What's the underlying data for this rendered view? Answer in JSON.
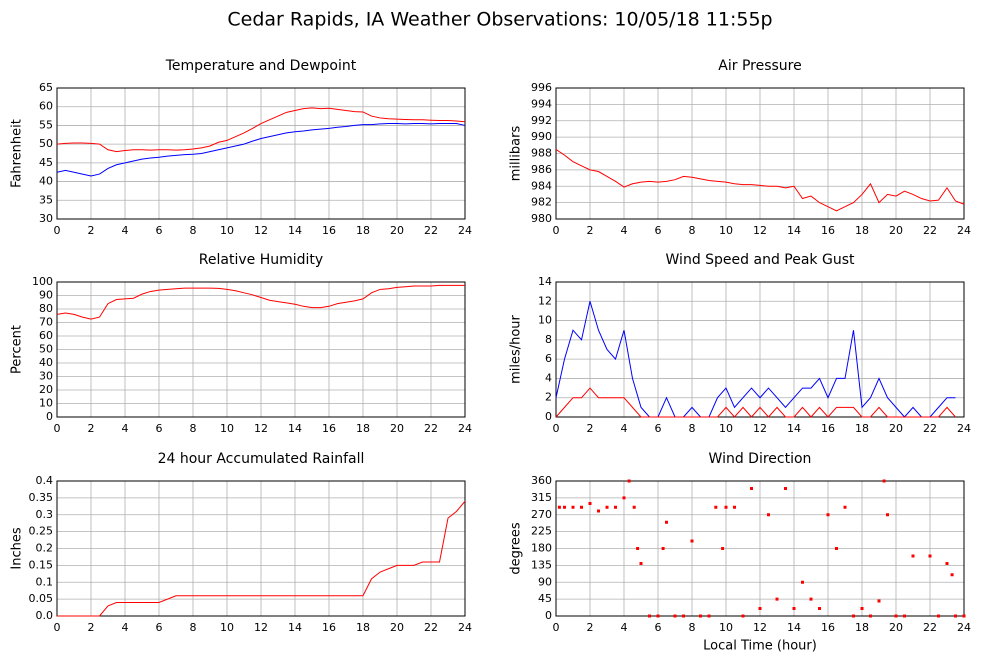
{
  "title": "Cedar Rapids, IA Weather Observations: 10/05/18 11:55p",
  "chart_data": [
    {
      "type": "line",
      "title": "Temperature and Dewpoint",
      "ylabel": "Fahrenheit",
      "x": [
        0,
        0.5,
        1,
        1.5,
        2,
        2.5,
        3,
        3.5,
        4,
        4.5,
        5,
        5.5,
        6,
        6.5,
        7,
        7.5,
        8,
        8.5,
        9,
        9.5,
        10,
        10.5,
        11,
        11.5,
        12,
        12.5,
        13,
        13.5,
        14,
        14.5,
        15,
        15.5,
        16,
        16.5,
        17,
        17.5,
        18,
        18.5,
        19,
        19.5,
        20,
        20.5,
        21,
        21.5,
        22,
        22.5,
        23,
        23.5,
        24
      ],
      "series": [
        {
          "color": "#ff0000",
          "values": [
            50,
            50.2,
            50.3,
            50.3,
            50.2,
            50,
            48.5,
            48,
            48.3,
            48.5,
            48.5,
            48.4,
            48.5,
            48.5,
            48.4,
            48.5,
            48.7,
            49,
            49.5,
            50.5,
            51,
            52,
            53,
            54.2,
            55.5,
            56.5,
            57.5,
            58.5,
            59,
            59.5,
            59.7,
            59.5,
            59.6,
            59.3,
            59,
            58.7,
            58.6,
            57.5,
            57,
            56.8,
            56.7,
            56.6,
            56.5,
            56.5,
            56.4,
            56.3,
            56.3,
            56.2,
            56
          ]
        },
        {
          "color": "#0000ff",
          "values": [
            42.5,
            43,
            42.5,
            42,
            41.5,
            42,
            43.5,
            44.5,
            45,
            45.5,
            46,
            46.3,
            46.5,
            46.8,
            47,
            47.2,
            47.3,
            47.5,
            48,
            48.5,
            49,
            49.5,
            50,
            50.8,
            51.5,
            52,
            52.5,
            53,
            53.3,
            53.5,
            53.8,
            54,
            54.2,
            54.5,
            54.7,
            55,
            55.2,
            55.2,
            55.4,
            55.5,
            55.5,
            55.4,
            55.5,
            55.5,
            55.4,
            55.5,
            55.5,
            55.5,
            55
          ]
        }
      ],
      "xlim": [
        0,
        24
      ],
      "xticks": [
        0,
        2,
        4,
        6,
        8,
        10,
        12,
        14,
        16,
        18,
        20,
        22,
        24
      ],
      "ylim": [
        30,
        65
      ],
      "yticks": [
        30,
        35,
        40,
        45,
        50,
        55,
        60,
        65
      ],
      "grid": true
    },
    {
      "type": "line",
      "title": "Air Pressure",
      "ylabel": "millibars",
      "x": [
        0,
        0.5,
        1,
        1.5,
        2,
        2.5,
        3,
        3.5,
        4,
        4.5,
        5,
        5.5,
        6,
        6.5,
        7,
        7.5,
        8,
        8.5,
        9,
        9.5,
        10,
        10.5,
        11,
        11.5,
        12,
        12.5,
        13,
        13.5,
        14,
        14.5,
        15,
        15.5,
        16,
        16.5,
        17,
        17.5,
        18,
        18.5,
        19,
        19.5,
        20,
        20.5,
        21,
        21.5,
        22,
        22.5,
        23,
        23.5,
        24
      ],
      "series": [
        {
          "color": "#ff0000",
          "values": [
            988.5,
            987.8,
            987,
            986.5,
            986,
            985.8,
            985.2,
            984.6,
            983.9,
            984.3,
            984.5,
            984.6,
            984.5,
            984.6,
            984.8,
            985.2,
            985.1,
            984.9,
            984.7,
            984.6,
            984.5,
            984.3,
            984.2,
            984.2,
            984.1,
            984,
            984,
            983.8,
            984,
            982.5,
            982.8,
            982,
            981.5,
            981,
            981.5,
            982,
            983,
            984.3,
            982,
            983,
            982.8,
            983.4,
            983,
            982.5,
            982.2,
            982.3,
            983.8,
            982.2,
            981.8
          ]
        }
      ],
      "xlim": [
        0,
        24
      ],
      "xticks": [
        0,
        2,
        4,
        6,
        8,
        10,
        12,
        14,
        16,
        18,
        20,
        22,
        24
      ],
      "ylim": [
        980,
        996
      ],
      "yticks": [
        980,
        982,
        984,
        986,
        988,
        990,
        992,
        994,
        996
      ],
      "grid": true
    },
    {
      "type": "line",
      "title": "Relative Humidity",
      "ylabel": "Percent",
      "x": [
        0,
        0.5,
        1,
        1.5,
        2,
        2.5,
        3,
        3.5,
        4,
        4.5,
        5,
        5.5,
        6,
        6.5,
        7,
        7.5,
        8,
        8.5,
        9,
        9.5,
        10,
        10.5,
        11,
        11.5,
        12,
        12.5,
        13,
        13.5,
        14,
        14.5,
        15,
        15.5,
        16,
        16.5,
        17,
        17.5,
        18,
        18.5,
        19,
        19.5,
        20,
        20.5,
        21,
        21.5,
        22,
        22.5,
        23,
        23.5,
        24
      ],
      "series": [
        {
          "color": "#ff0000",
          "values": [
            76,
            77,
            76,
            74,
            72.5,
            74,
            84,
            87,
            87.5,
            88,
            91,
            93,
            94,
            94.5,
            95,
            95.5,
            95.5,
            95.5,
            95.5,
            95.3,
            94.5,
            93.5,
            92,
            90.5,
            88.5,
            86.5,
            85.5,
            84.5,
            83.5,
            82,
            81,
            81,
            82,
            84,
            85,
            86,
            87.5,
            92,
            94.5,
            95,
            96,
            96.5,
            97,
            97,
            97,
            97.5,
            97.5,
            97.5,
            97.5
          ]
        }
      ],
      "xlim": [
        0,
        24
      ],
      "xticks": [
        0,
        2,
        4,
        6,
        8,
        10,
        12,
        14,
        16,
        18,
        20,
        22,
        24
      ],
      "ylim": [
        0,
        100
      ],
      "yticks": [
        0,
        10,
        20,
        30,
        40,
        50,
        60,
        70,
        80,
        90,
        100
      ],
      "grid": true
    },
    {
      "type": "line",
      "title": "Wind Speed and Peak Gust",
      "ylabel": "miles/hour",
      "x": [
        0,
        0.5,
        1,
        1.5,
        2,
        2.5,
        3,
        3.5,
        4,
        4.5,
        5,
        5.5,
        6,
        6.5,
        7,
        7.5,
        8,
        8.5,
        9,
        9.5,
        10,
        10.5,
        11,
        11.5,
        12,
        12.5,
        13,
        13.5,
        14,
        14.5,
        15,
        15.5,
        16,
        16.5,
        17,
        17.5,
        18,
        18.5,
        19,
        19.5,
        20,
        20.5,
        21,
        21.5,
        22,
        22.5,
        23,
        23.5
      ],
      "series": [
        {
          "color": "#0000ff",
          "values": [
            2,
            6,
            9,
            8,
            12,
            9,
            7,
            6,
            9,
            4,
            1,
            0,
            0,
            2,
            0,
            0,
            1,
            0,
            0,
            2,
            3,
            1,
            2,
            3,
            2,
            3,
            2,
            1,
            2,
            3,
            3,
            4,
            2,
            4,
            4,
            9,
            1,
            2,
            4,
            2,
            1,
            0,
            1,
            0,
            0,
            1,
            2,
            2
          ]
        },
        {
          "color": "#ff0000",
          "values": [
            0,
            1,
            2,
            2,
            3,
            2,
            2,
            2,
            2,
            1,
            0,
            0,
            0,
            0,
            0,
            0,
            0,
            0,
            0,
            0,
            1,
            0,
            1,
            0,
            1,
            0,
            1,
            0,
            0,
            1,
            0,
            1,
            0,
            1,
            1,
            1,
            0,
            0,
            1,
            0,
            0,
            0,
            0,
            0,
            0,
            0,
            1,
            0
          ]
        }
      ],
      "xlim": [
        0,
        24
      ],
      "xticks": [
        0,
        2,
        4,
        6,
        8,
        10,
        12,
        14,
        16,
        18,
        20,
        22,
        24
      ],
      "ylim": [
        0,
        14
      ],
      "yticks": [
        0,
        2,
        4,
        6,
        8,
        10,
        12,
        14
      ],
      "grid": true
    },
    {
      "type": "line",
      "title": "24 hour Accumulated Rainfall",
      "ylabel": "Inches",
      "x": [
        0,
        0.5,
        1,
        1.5,
        2,
        2.5,
        3,
        3.5,
        4,
        4.5,
        5,
        5.5,
        6,
        6.5,
        7,
        7.5,
        8,
        8.5,
        9,
        9.5,
        10,
        10.5,
        11,
        11.5,
        12,
        12.5,
        13,
        13.5,
        14,
        14.5,
        15,
        15.5,
        16,
        16.5,
        17,
        17.5,
        18,
        18.5,
        19,
        19.5,
        20,
        20.5,
        21,
        21.5,
        22,
        22.5,
        23,
        23.5,
        24
      ],
      "series": [
        {
          "color": "#ff0000",
          "values": [
            0,
            0,
            0,
            0,
            0,
            0,
            0.03,
            0.04,
            0.04,
            0.04,
            0.04,
            0.04,
            0.04,
            0.05,
            0.06,
            0.06,
            0.06,
            0.06,
            0.06,
            0.06,
            0.06,
            0.06,
            0.06,
            0.06,
            0.06,
            0.06,
            0.06,
            0.06,
            0.06,
            0.06,
            0.06,
            0.06,
            0.06,
            0.06,
            0.06,
            0.06,
            0.06,
            0.11,
            0.13,
            0.14,
            0.15,
            0.15,
            0.15,
            0.16,
            0.16,
            0.16,
            0.29,
            0.31,
            0.34
          ]
        }
      ],
      "xlim": [
        0,
        24
      ],
      "xticks": [
        0,
        2,
        4,
        6,
        8,
        10,
        12,
        14,
        16,
        18,
        20,
        22,
        24
      ],
      "ylim": [
        0,
        0.4
      ],
      "yticks": [
        {
          "value": 0,
          "label": "0.0"
        },
        0.05,
        0.1,
        0.15,
        0.2,
        0.25,
        0.3,
        0.35,
        0.4
      ],
      "grid": true
    },
    {
      "type": "scatter",
      "title": "Wind Direction",
      "ylabel": "degrees",
      "xlabel": "Local Time (hour)",
      "x": [
        0.2,
        0.5,
        1,
        1.5,
        2,
        2.5,
        3,
        3.5,
        4,
        4.3,
        4.6,
        4.8,
        5,
        5.5,
        6,
        6.3,
        6.5,
        7,
        7.5,
        8,
        8.5,
        9,
        9.4,
        9.8,
        10,
        10.5,
        11,
        11.5,
        12,
        12.5,
        13,
        13.5,
        14,
        14.5,
        15,
        15.5,
        16,
        16.5,
        17,
        17.5,
        18,
        18.5,
        19,
        19.3,
        19.5,
        20,
        20.5,
        21,
        22,
        22.5,
        23,
        23.3,
        23.5,
        24
      ],
      "series": [
        {
          "color": "#ff0000",
          "values": [
            290,
            290,
            290,
            290,
            300,
            280,
            290,
            290,
            315,
            360,
            290,
            180,
            140,
            0,
            0,
            180,
            250,
            0,
            0,
            200,
            0,
            0,
            290,
            180,
            290,
            290,
            0,
            340,
            20,
            270,
            45,
            340,
            20,
            90,
            45,
            20,
            270,
            180,
            290,
            0,
            20,
            0,
            40,
            360,
            270,
            0,
            0,
            160,
            160,
            0,
            140,
            110,
            0,
            0
          ]
        }
      ],
      "xlim": [
        0,
        24
      ],
      "xticks": [
        0,
        2,
        4,
        6,
        8,
        10,
        12,
        14,
        16,
        18,
        20,
        22,
        24
      ],
      "ylim": [
        0,
        360
      ],
      "yticks": [
        0,
        45,
        90,
        135,
        180,
        225,
        270,
        315,
        360
      ],
      "grid": true
    }
  ]
}
